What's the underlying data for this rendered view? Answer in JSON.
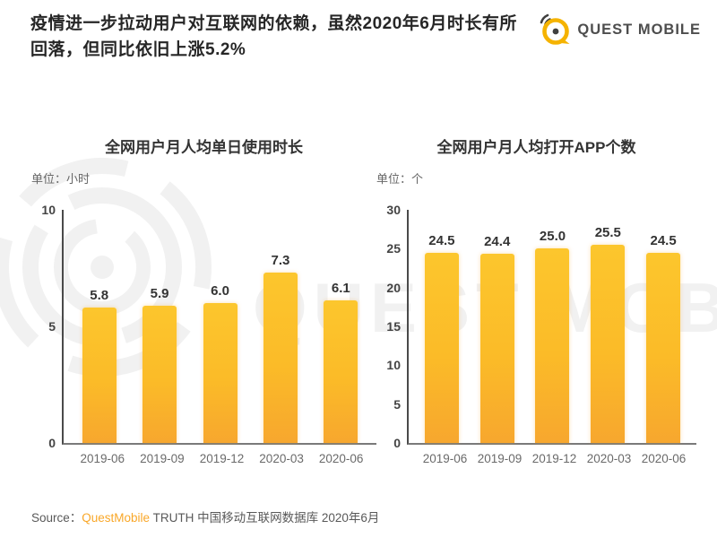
{
  "header": {
    "title_lines": [
      "疫情进一步拉动用户对互联网的依赖，虽然2020年6月时长有所",
      "回落，但同比依旧上涨5.2%"
    ],
    "logo_text": "QUEST MOBILE"
  },
  "chart_data": [
    {
      "type": "bar",
      "title": "全网用户月人均单日使用时长",
      "unit_label": "单位：小时",
      "categories": [
        "2019-06",
        "2019-09",
        "2019-12",
        "2020-03",
        "2020-06"
      ],
      "values": [
        5.8,
        5.9,
        6.0,
        7.3,
        6.1
      ],
      "labels": [
        "5.8",
        "5.9",
        "6.0",
        "7.3",
        "6.1"
      ],
      "ylim": [
        0,
        10
      ],
      "yticks": [
        0,
        5,
        10
      ],
      "grid": false,
      "legend": "none",
      "bar_color_top": "#FCC62D",
      "bar_color_bottom": "#F7A72E"
    },
    {
      "type": "bar",
      "title": "全网用户月人均打开APP个数",
      "unit_label": "单位：个",
      "categories": [
        "2019-06",
        "2019-09",
        "2019-12",
        "2020-03",
        "2020-06"
      ],
      "values": [
        24.5,
        24.4,
        25.0,
        25.5,
        24.5
      ],
      "labels": [
        "24.5",
        "24.4",
        "25.0",
        "25.5",
        "24.5"
      ],
      "ylim": [
        0,
        30
      ],
      "yticks": [
        0,
        5,
        10,
        15,
        20,
        25,
        30
      ],
      "grid": false,
      "legend": "none",
      "bar_color_top": "#FCC62D",
      "bar_color_bottom": "#F7A72E"
    }
  ],
  "footer": {
    "source_prefix": "Source：",
    "source_brand": "QuestMobile",
    "source_rest": " TRUTH 中国移动互联网数据库 2020年6月"
  },
  "colors": {
    "bar_yellow": "#FBBD2A",
    "brand_orange": "#F9A728",
    "logo_yellow": "#F5B301",
    "logo_dark": "#404040",
    "title_text": "#262626",
    "axis_line": "#4A4A4A",
    "tick_text": "#444444",
    "xlabel_text": "#6A6A6A",
    "source_text": "#595959"
  },
  "icons": {
    "logo_icon": "questmobile-speech-bubble-icon",
    "watermark": "questmobile-watermark"
  }
}
